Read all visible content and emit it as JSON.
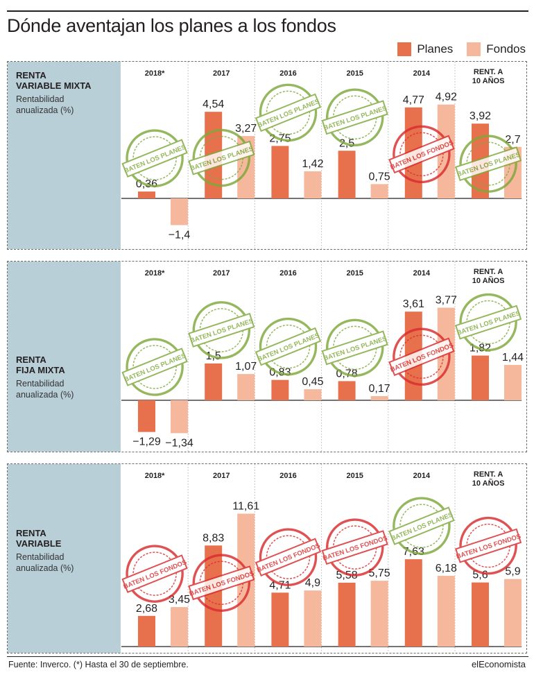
{
  "header": {
    "title": "Dónde aventajan los planes a los fondos"
  },
  "legend": [
    {
      "label": "Planes",
      "color": "#e8714d"
    },
    {
      "label": "Fondos",
      "color": "#f6b89c"
    }
  ],
  "colors": {
    "planes": "#e8714d",
    "fondos": "#f6b89c",
    "stamp_green": "#7ea83a",
    "stamp_red": "#d92c2e",
    "panel_side": "#b9cfd8"
  },
  "stamp_labels": {
    "planes": "BATEN LOS PLANES",
    "fondos": "BATEN LOS FONDOS"
  },
  "footer": {
    "source": "Fuente: Inverco. (*) Hasta el 30 de septiembre.",
    "brand": "elEconomista"
  },
  "chart_data": [
    {
      "type": "bar",
      "panel_title": "RENTA\nVARIABLE MIXTA",
      "subtitle": "Rentabilidad\nanualizada (%)",
      "categories": [
        "2018*",
        "2017",
        "2016",
        "2015",
        "2014",
        "RENT. A\n10 AÑOS"
      ],
      "series": [
        {
          "name": "Planes",
          "values": [
            0.36,
            4.54,
            2.75,
            2.5,
            4.77,
            3.92
          ],
          "labels": [
            "0,36",
            "4,54",
            "2,75",
            "2,5",
            "4,77",
            "3,92"
          ]
        },
        {
          "name": "Fondos",
          "values": [
            -1.4,
            3.27,
            1.42,
            0.75,
            4.92,
            2.7
          ],
          "labels": [
            "−1,4",
            "3,27",
            "1,42",
            "0,75",
            "4,92",
            "2,7"
          ]
        }
      ],
      "stamps": [
        "planes",
        "planes",
        "planes",
        "planes",
        "fondos",
        "planes"
      ]
    },
    {
      "type": "bar",
      "panel_title": "RENTA\nFIJA MIXTA",
      "subtitle": "Rentabilidad\nanualizada (%)",
      "categories": [
        "2018*",
        "2017",
        "2016",
        "2015",
        "2014",
        "RENT. A\n10 AÑOS"
      ],
      "series": [
        {
          "name": "Planes",
          "values": [
            -1.29,
            1.5,
            0.83,
            0.78,
            3.61,
            1.82
          ],
          "labels": [
            "−1,29",
            "1,5",
            "0,83",
            "0,78",
            "3,61",
            "1,82"
          ]
        },
        {
          "name": "Fondos",
          "values": [
            -1.34,
            1.07,
            0.45,
            0.17,
            3.77,
            1.44
          ],
          "labels": [
            "−1,34",
            "1,07",
            "0,45",
            "0,17",
            "3,77",
            "1,44"
          ]
        }
      ],
      "stamps": [
        "planes",
        "planes",
        "planes",
        "planes",
        "fondos",
        "planes"
      ]
    },
    {
      "type": "bar",
      "panel_title": "RENTA\nVARIABLE",
      "subtitle": "Rentabilidad\nanualizada (%)",
      "categories": [
        "2018*",
        "2017",
        "2016",
        "2015",
        "2014",
        "RENT. A\n10 AÑOS"
      ],
      "series": [
        {
          "name": "Planes",
          "values": [
            2.68,
            8.83,
            4.71,
            5.58,
            7.63,
            5.6
          ],
          "labels": [
            "2,68",
            "8,83",
            "4,71",
            "5,58",
            "7,63",
            "5,6"
          ]
        },
        {
          "name": "Fondos",
          "values": [
            3.45,
            11.61,
            4.9,
            5.75,
            6.18,
            5.9
          ],
          "labels": [
            "3,45",
            "11,61",
            "4,9",
            "5,75",
            "6,18",
            "5,9"
          ]
        }
      ],
      "stamps": [
        "fondos",
        "fondos",
        "fondos",
        "fondos",
        "planes",
        "fondos"
      ]
    }
  ]
}
